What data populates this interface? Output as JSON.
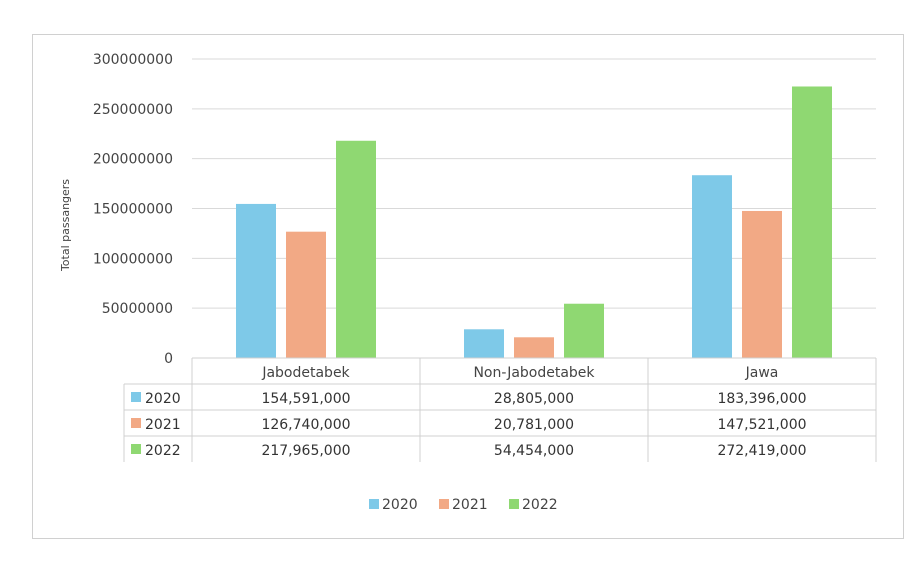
{
  "chart_data": {
    "type": "bar",
    "ylabel": "Total passangers",
    "xlabel": "",
    "title": "",
    "ylim": [
      0,
      300000000
    ],
    "yticks": [
      0,
      50000000,
      100000000,
      150000000,
      200000000,
      250000000,
      300000000
    ],
    "ytick_labels": [
      "0",
      "50000000",
      "100000000",
      "150000000",
      "200000000",
      "250000000",
      "300000000"
    ],
    "grid": true,
    "legend_position": "bottom",
    "categories": [
      "Jabodetabek",
      "Non-Jabodetabek",
      "Jawa"
    ],
    "series": [
      {
        "name": "2020",
        "color": "#7ec9e8",
        "values": [
          154591000,
          28805000,
          183396000
        ],
        "labels": [
          "154,591,000",
          "28,805,000",
          "183,396,000"
        ]
      },
      {
        "name": "2021",
        "color": "#f2a985",
        "values": [
          126740000,
          20781000,
          147521000
        ],
        "labels": [
          "126,740,000",
          "20,781,000",
          "147,521,000"
        ]
      },
      {
        "name": "2022",
        "color": "#8fd872",
        "values": [
          217965000,
          54454000,
          272419000
        ],
        "labels": [
          "217,965,000",
          "54,454,000",
          "272,419,000"
        ]
      }
    ],
    "data_table": true
  }
}
